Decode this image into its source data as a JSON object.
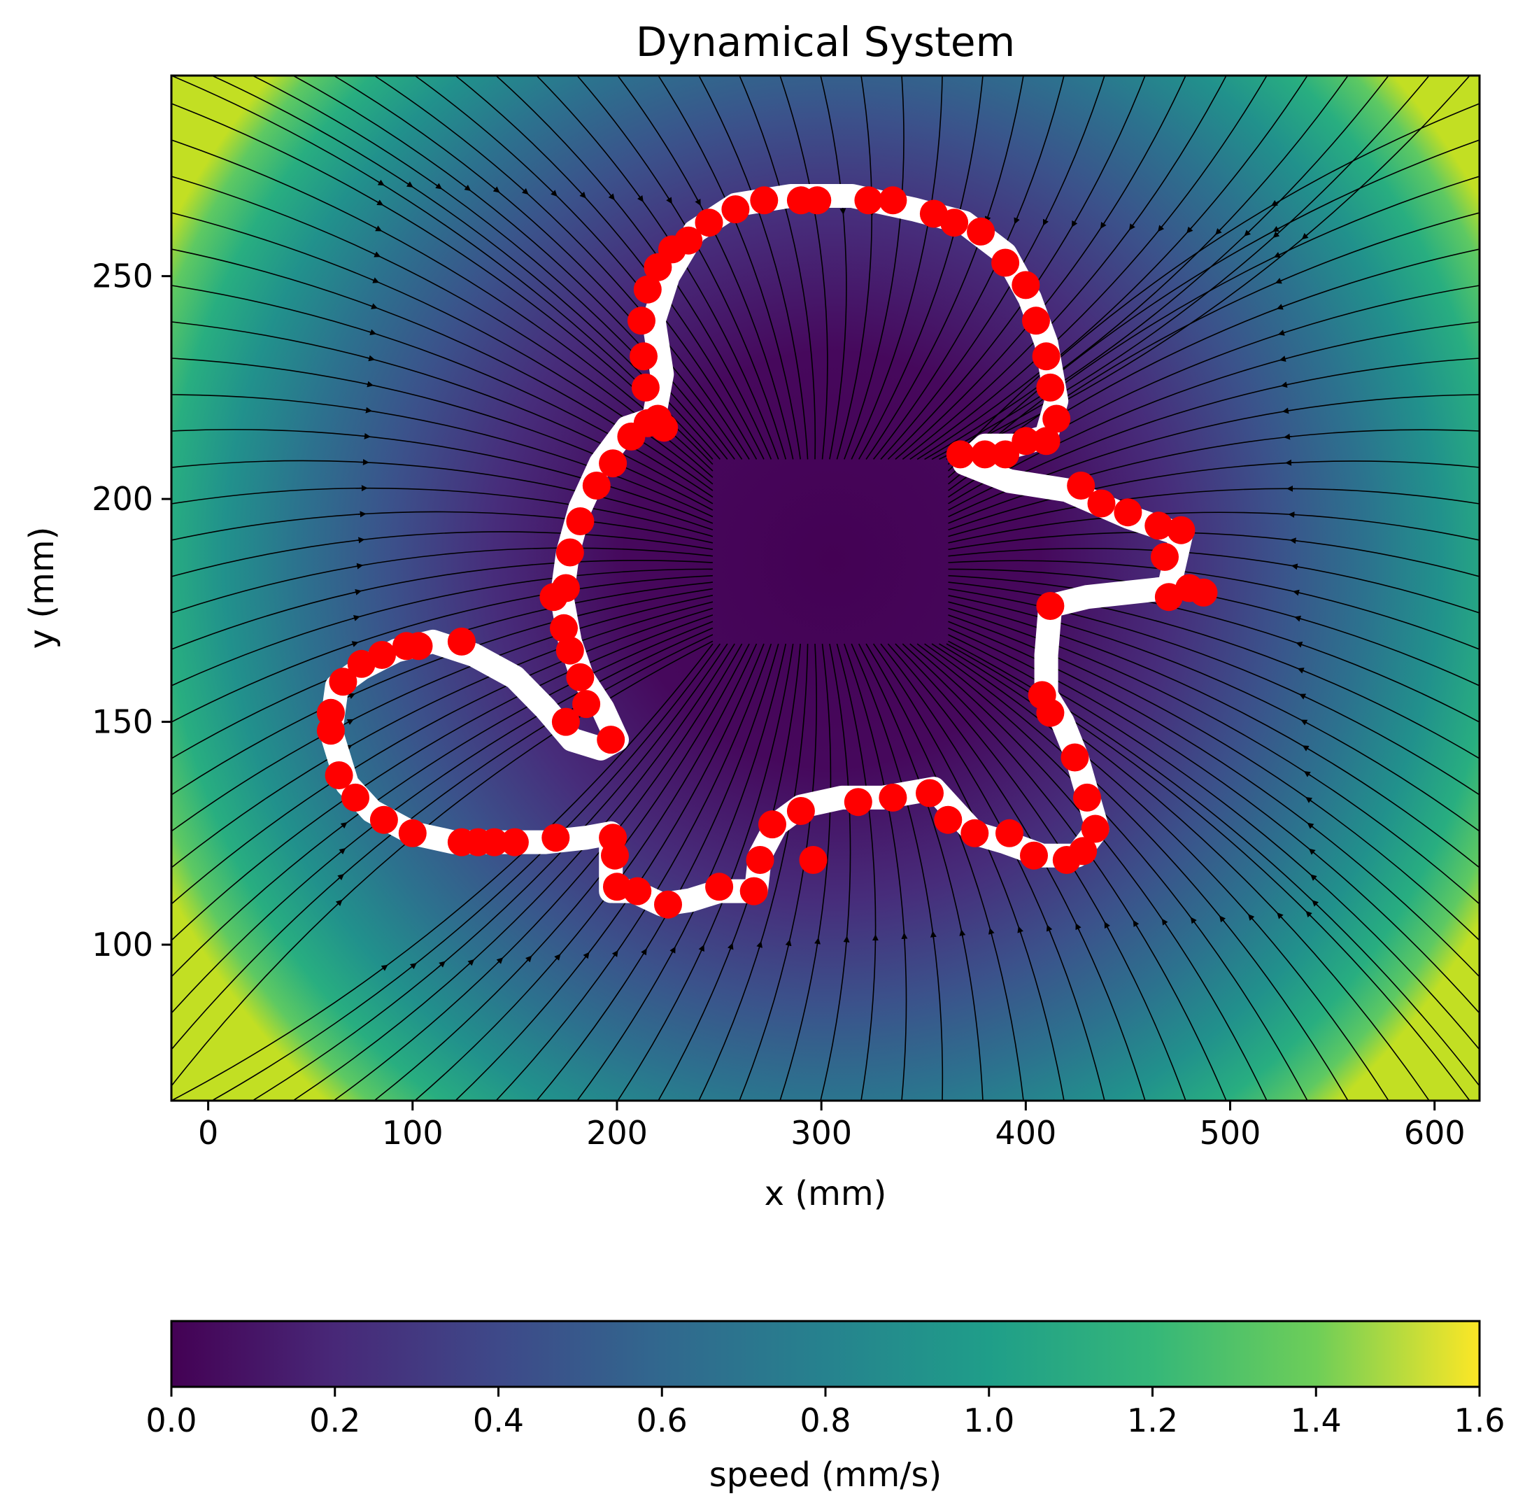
{
  "chart_data": {
    "type": "streamplot",
    "title": "Dynamical System",
    "xlabel": "x (mm)",
    "ylabel": "y (mm)",
    "xlim": [
      -18,
      622
    ],
    "ylim": [
      65,
      295
    ],
    "xticks": [
      0,
      100,
      200,
      300,
      400,
      500,
      600
    ],
    "yticks": [
      100,
      150,
      200,
      250
    ],
    "grid": false,
    "attractor": [
      305,
      190
    ],
    "field": {
      "colormap": "viridis",
      "colorbar": {
        "label": "speed (mm/s)",
        "range": [
          0.0,
          1.6
        ],
        "ticks": [
          "0.0",
          "0.2",
          "0.4",
          "0.6",
          "0.8",
          "1.0",
          "1.2",
          "1.4",
          "1.6"
        ],
        "placement": "bottom"
      }
    },
    "colors": {
      "trajectory": "#ffffff",
      "demonstration_points": "#ff0000",
      "streamlines": "#000000"
    },
    "series": [
      {
        "kind": "trajectory",
        "points": [
          [
            197,
            112
          ],
          [
            197,
            125
          ],
          [
            185,
            124
          ],
          [
            165,
            123
          ],
          [
            140,
            123
          ],
          [
            120,
            123
          ],
          [
            100,
            125
          ],
          [
            80,
            130
          ],
          [
            68,
            136
          ],
          [
            60,
            148
          ],
          [
            63,
            158
          ],
          [
            75,
            162
          ],
          [
            92,
            166
          ],
          [
            110,
            168
          ],
          [
            130,
            165
          ],
          [
            150,
            160
          ],
          [
            165,
            153
          ],
          [
            178,
            146
          ],
          [
            192,
            144
          ],
          [
            200,
            146
          ],
          [
            193,
            153
          ],
          [
            183,
            160
          ],
          [
            177,
            168
          ],
          [
            173,
            178
          ],
          [
            176,
            188
          ],
          [
            182,
            198
          ],
          [
            192,
            208
          ],
          [
            205,
            216
          ],
          [
            218,
            218
          ],
          [
            222,
            228
          ],
          [
            218,
            240
          ],
          [
            225,
            250
          ],
          [
            238,
            260
          ],
          [
            258,
            266
          ],
          [
            285,
            268
          ],
          [
            315,
            268
          ],
          [
            345,
            265
          ],
          [
            370,
            262
          ],
          [
            390,
            255
          ],
          [
            402,
            245
          ],
          [
            410,
            235
          ],
          [
            415,
            222
          ],
          [
            410,
            214
          ],
          [
            395,
            212
          ],
          [
            380,
            212
          ],
          [
            370,
            208
          ],
          [
            392,
            204
          ],
          [
            420,
            202
          ],
          [
            450,
            196
          ],
          [
            476,
            192
          ],
          [
            470,
            180
          ],
          [
            430,
            178
          ],
          [
            412,
            176
          ],
          [
            410,
            165
          ],
          [
            410,
            156
          ],
          [
            418,
            150
          ],
          [
            425,
            142
          ],
          [
            430,
            134
          ],
          [
            435,
            126
          ],
          [
            425,
            120
          ],
          [
            408,
            120
          ],
          [
            390,
            123
          ],
          [
            375,
            125
          ],
          [
            365,
            130
          ],
          [
            355,
            135
          ],
          [
            330,
            133
          ],
          [
            310,
            133
          ],
          [
            290,
            131
          ],
          [
            278,
            127
          ],
          [
            270,
            120
          ],
          [
            268,
            112
          ],
          [
            250,
            112
          ],
          [
            236,
            110
          ],
          [
            222,
            109
          ],
          [
            208,
            112
          ],
          [
            198,
            112
          ]
        ]
      },
      {
        "kind": "demonstration",
        "points": [
          [
            200,
            113
          ],
          [
            199,
            120
          ],
          [
            198,
            124
          ],
          [
            170,
            124
          ],
          [
            150,
            123
          ],
          [
            140,
            123
          ],
          [
            132,
            123
          ],
          [
            124,
            123
          ],
          [
            100,
            125
          ],
          [
            86,
            128
          ],
          [
            72,
            133
          ],
          [
            64,
            138
          ],
          [
            60,
            148
          ],
          [
            60,
            152
          ],
          [
            66,
            159
          ],
          [
            75,
            163
          ],
          [
            85,
            165
          ],
          [
            97,
            167
          ],
          [
            103,
            167
          ],
          [
            124,
            168
          ],
          [
            175,
            150
          ],
          [
            197,
            146
          ],
          [
            185,
            154
          ],
          [
            182,
            160
          ],
          [
            177,
            166
          ],
          [
            174,
            171
          ],
          [
            169,
            178
          ],
          [
            175,
            180
          ],
          [
            177,
            188
          ],
          [
            182,
            195
          ],
          [
            190,
            203
          ],
          [
            198,
            208
          ],
          [
            207,
            214
          ],
          [
            215,
            217
          ],
          [
            220,
            218
          ],
          [
            223,
            216
          ],
          [
            214,
            225
          ],
          [
            213,
            232
          ],
          [
            212,
            240
          ],
          [
            215,
            247
          ],
          [
            220,
            252
          ],
          [
            227,
            256
          ],
          [
            235,
            258
          ],
          [
            245,
            262
          ],
          [
            258,
            265
          ],
          [
            272,
            267
          ],
          [
            290,
            267
          ],
          [
            298,
            267
          ],
          [
            323,
            267
          ],
          [
            335,
            267
          ],
          [
            355,
            264
          ],
          [
            365,
            262
          ],
          [
            378,
            260
          ],
          [
            390,
            253
          ],
          [
            400,
            248
          ],
          [
            405,
            240
          ],
          [
            410,
            232
          ],
          [
            412,
            225
          ],
          [
            415,
            218
          ],
          [
            410,
            213
          ],
          [
            400,
            213
          ],
          [
            390,
            210
          ],
          [
            380,
            210
          ],
          [
            368,
            210
          ],
          [
            427,
            203
          ],
          [
            437,
            199
          ],
          [
            450,
            197
          ],
          [
            465,
            194
          ],
          [
            476,
            193
          ],
          [
            468,
            187
          ],
          [
            470,
            178
          ],
          [
            480,
            180
          ],
          [
            487,
            179
          ],
          [
            412,
            176
          ],
          [
            408,
            156
          ],
          [
            412,
            152
          ],
          [
            424,
            142
          ],
          [
            430,
            133
          ],
          [
            434,
            126
          ],
          [
            428,
            121
          ],
          [
            420,
            119
          ],
          [
            404,
            120
          ],
          [
            392,
            125
          ],
          [
            375,
            125
          ],
          [
            362,
            128
          ],
          [
            353,
            134
          ],
          [
            335,
            133
          ],
          [
            318,
            132
          ],
          [
            290,
            130
          ],
          [
            276,
            127
          ],
          [
            270,
            119
          ],
          [
            267,
            112
          ],
          [
            296,
            119
          ],
          [
            250,
            113
          ],
          [
            225,
            109
          ],
          [
            210,
            112
          ]
        ]
      }
    ]
  }
}
